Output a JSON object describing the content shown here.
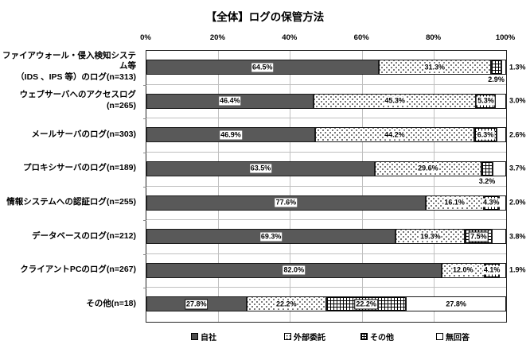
{
  "title": "【全体】ログの保管方法",
  "axis": {
    "ticks": [
      "0%",
      "20%",
      "40%",
      "60%",
      "80%",
      "100%"
    ]
  },
  "legend": [
    {
      "key": "jisha",
      "label": "自社"
    },
    {
      "key": "gaibu",
      "label": "外部委託"
    },
    {
      "key": "sonota",
      "label": "その他"
    },
    {
      "key": "mukaito",
      "label": "無回答"
    }
  ],
  "colors": {
    "bar_dark": "#595959",
    "grid": "#bfbfbf",
    "border": "#000000",
    "background": "#ffffff"
  },
  "chart_data": {
    "type": "bar",
    "orientation": "horizontal",
    "stacked": true,
    "unit": "%",
    "xlim": [
      0,
      100
    ],
    "grid": true,
    "legend_position": "bottom",
    "title": "【全体】ログの保管方法",
    "series_names": [
      "自社",
      "外部委託",
      "その他",
      "無回答"
    ],
    "categories": [
      "ファイアウォール・侵入検知システム等（IDS 、IPS 等）のログ(n=313)",
      "ウェブサーバへのアクセスログ(n=265)",
      "メールサーバのログ(n=303)",
      "プロキシサーバのログ(n=189)",
      "情報システムへの認証ログ(n=255)",
      "データベースのログ(n=212)",
      "クライアントPCのログ(n=267)",
      "その他(n=18)"
    ],
    "rows": [
      {
        "category_lines": [
          "ファイアウォール・侵入検知システム等",
          "（IDS 、IPS 等）のログ(n=313)"
        ],
        "values": [
          64.5,
          31.3,
          2.9,
          1.3
        ],
        "label_pos": [
          "inside",
          "inside",
          "below",
          "right"
        ],
        "boxed": [
          false,
          false,
          false,
          false
        ]
      },
      {
        "category_lines": [
          "ウェブサーバへのアクセスログ(n=265)"
        ],
        "values": [
          46.4,
          45.3,
          5.3,
          3.0
        ],
        "label_pos": [
          "inside",
          "inside",
          "inside",
          "right"
        ],
        "boxed": [
          false,
          false,
          false,
          false
        ]
      },
      {
        "category_lines": [
          "メールサーバのログ(n=303)"
        ],
        "values": [
          46.9,
          44.2,
          6.3,
          2.6
        ],
        "label_pos": [
          "inside",
          "inside",
          "inside",
          "right"
        ],
        "boxed": [
          false,
          false,
          false,
          false
        ]
      },
      {
        "category_lines": [
          "プロキシサーバのログ(n=189)"
        ],
        "values": [
          63.5,
          29.6,
          3.2,
          3.7
        ],
        "label_pos": [
          "inside",
          "inside",
          "below",
          "right"
        ],
        "boxed": [
          false,
          false,
          false,
          false
        ]
      },
      {
        "category_lines": [
          "情報システムへの認証ログ(n=255)"
        ],
        "values": [
          77.6,
          16.1,
          4.3,
          2.0
        ],
        "label_pos": [
          "inside",
          "inside",
          "inside",
          "right"
        ],
        "boxed": [
          false,
          false,
          false,
          false
        ]
      },
      {
        "category_lines": [
          "データベースのログ(n=212)"
        ],
        "values": [
          69.3,
          19.3,
          7.5,
          3.8
        ],
        "label_pos": [
          "inside",
          "inside",
          "inside",
          "right"
        ],
        "boxed": [
          false,
          false,
          true,
          false
        ]
      },
      {
        "category_lines": [
          "クライアントPCのログ(n=267)"
        ],
        "values": [
          82.0,
          12.0,
          4.1,
          1.9
        ],
        "label_pos": [
          "inside",
          "inside",
          "inside",
          "right"
        ],
        "boxed": [
          false,
          false,
          false,
          false
        ]
      },
      {
        "category_lines": [
          "その他(n=18)"
        ],
        "values": [
          27.8,
          22.2,
          22.2,
          27.8
        ],
        "label_pos": [
          "inside",
          "inside",
          "inside",
          "inside"
        ],
        "boxed": [
          true,
          false,
          true,
          false
        ]
      }
    ]
  }
}
